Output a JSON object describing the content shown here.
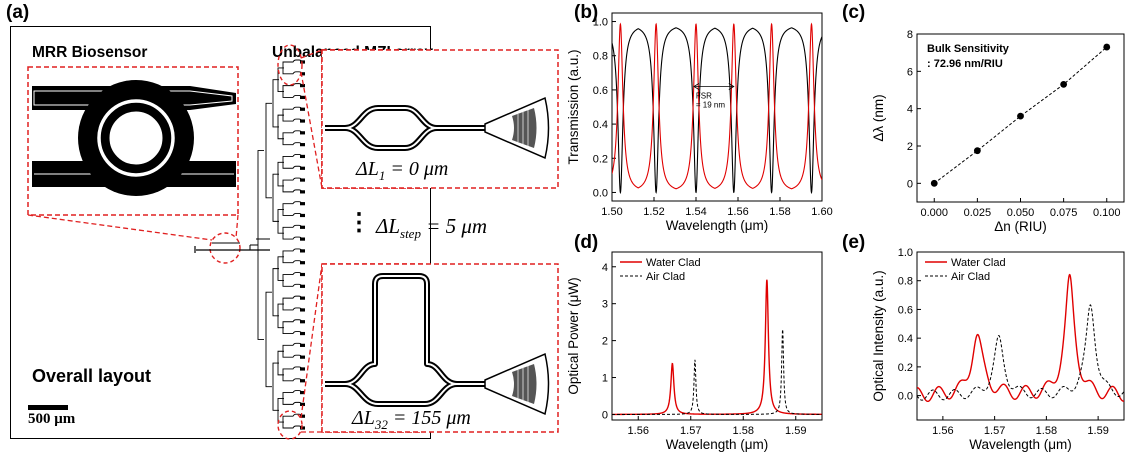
{
  "panel_a": {
    "label": "(a)",
    "mrr_title": "MRR Biosensor",
    "mzi_title": "Unbalanced MZI array",
    "layout_label": "Overall layout",
    "scale_label": "500 μm",
    "dl1_label": "ΔL",
    "dl1_sub": "1",
    "dl1_value": " = 0 μm",
    "dl32_label": "ΔL",
    "dl32_sub": "32",
    "dl32_value": " = 155 μm",
    "dlstep_label": "ΔL",
    "dlstep_sub": "step",
    "dlstep_value": " = 5 μm",
    "dots": "⋮"
  },
  "chart_data": [
    {
      "id": "b",
      "panel_label": "(b)",
      "type": "line",
      "xlabel": "Wavelength (μm)",
      "ylabel": "Transmission (a.u.)",
      "xlim": [
        1.5,
        1.6
      ],
      "ylim": [
        -0.05,
        1.05
      ],
      "xticks": [
        1.5,
        1.52,
        1.54,
        1.56,
        1.58,
        1.6
      ],
      "xtick_labels": [
        "1.50",
        "1.52",
        "1.54",
        "1.56",
        "1.58",
        "1.60"
      ],
      "yticks": [
        0.0,
        0.2,
        0.4,
        0.6,
        0.8,
        1.0
      ],
      "ytick_labels": [
        "0.0",
        "0.2",
        "0.4",
        "0.6",
        "0.8",
        "1.0"
      ],
      "annotation": [
        "FSR",
        "= 19 nm"
      ],
      "annotation_range": [
        1.539,
        1.558
      ],
      "series": [
        {
          "color": "#000000",
          "resonances": [
            1.504,
            1.521,
            1.54,
            1.558,
            1.576,
            1.595
          ]
        },
        {
          "color": "#e00000",
          "resonances": [
            1.504,
            1.521,
            1.54,
            1.558,
            1.576,
            1.595
          ]
        }
      ]
    },
    {
      "id": "c",
      "panel_label": "(c)",
      "type": "scatter",
      "xlabel": "Δn (RIU)",
      "ylabel": "Δλ (nm)",
      "xlim": [
        -0.01,
        0.11
      ],
      "ylim": [
        -1,
        8
      ],
      "xticks": [
        0.0,
        0.025,
        0.05,
        0.075,
        0.1
      ],
      "xtick_labels": [
        "0.000",
        "0.025",
        "0.050",
        "0.075",
        "0.100"
      ],
      "yticks": [
        0,
        2,
        4,
        6,
        8
      ],
      "ytick_labels": [
        "0",
        "2",
        "4",
        "6",
        "8"
      ],
      "annotation": [
        "Bulk Sensitivity",
        ": 72.96 nm/RIU"
      ],
      "x": [
        0.0,
        0.025,
        0.05,
        0.075,
        0.1
      ],
      "y": [
        0.0,
        1.75,
        3.6,
        5.3,
        7.3
      ]
    },
    {
      "id": "d",
      "panel_label": "(d)",
      "type": "line",
      "xlabel": "Wavelength (μm)",
      "ylabel": "Optical Power (μW)",
      "xlim": [
        1.555,
        1.595
      ],
      "ylim": [
        -0.15,
        4.4
      ],
      "xticks": [
        1.56,
        1.57,
        1.58,
        1.59
      ],
      "xtick_labels": [
        "1.56",
        "1.57",
        "1.58",
        "1.59"
      ],
      "yticks": [
        0,
        1,
        2,
        3,
        4
      ],
      "ytick_labels": [
        "0",
        "1",
        "2",
        "3",
        "4"
      ],
      "legend": "top-left",
      "series": [
        {
          "name": "Water Clad",
          "color": "#e00000",
          "dash": false,
          "peaks": [
            [
              1.5665,
              1.38,
              0.00035
            ],
            [
              1.5845,
              3.65,
              0.00035
            ]
          ]
        },
        {
          "name": "Air Clad",
          "color": "#000000",
          "dash": true,
          "peaks": [
            [
              1.5708,
              1.48,
              0.00022
            ],
            [
              1.5875,
              2.32,
              0.00022
            ]
          ]
        }
      ]
    },
    {
      "id": "e",
      "panel_label": "(e)",
      "type": "line",
      "xlabel": "Wavelength (μm)",
      "ylabel": "Optical Intensity (a.u.)",
      "xlim": [
        1.555,
        1.595
      ],
      "ylim": [
        -0.17,
        1.0
      ],
      "xticks": [
        1.56,
        1.57,
        1.58,
        1.59
      ],
      "xtick_labels": [
        "1.56",
        "1.57",
        "1.58",
        "1.59"
      ],
      "yticks": [
        0.0,
        0.2,
        0.4,
        0.6,
        0.8,
        1.0
      ],
      "ytick_labels": [
        "0.0",
        "0.2",
        "0.4",
        "0.6",
        "0.8",
        "1.0"
      ],
      "legend": "top-left",
      "series": [
        {
          "name": "Water Clad",
          "color": "#e00000",
          "dash": false,
          "peaks": [
            [
              1.5667,
              0.42,
              0.0013
            ],
            [
              1.5845,
              0.84,
              0.0011
            ]
          ],
          "ripple": 0.05
        },
        {
          "name": "Air Clad",
          "color": "#000000",
          "dash": true,
          "peaks": [
            [
              1.5708,
              0.41,
              0.0011
            ],
            [
              1.5885,
              0.63,
              0.0011
            ]
          ],
          "ripple": 0.035
        }
      ]
    }
  ]
}
